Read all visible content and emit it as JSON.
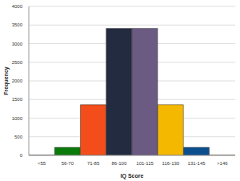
{
  "chart_data": {
    "type": "bar",
    "x_label": "IQ Score",
    "y_label": "Frequency",
    "categories": [
      "<55",
      "56-70",
      "71-85",
      "86-100",
      "101-115",
      "116-130",
      "131-145",
      ">146"
    ],
    "values": [
      10,
      215,
      1360,
      3410,
      3410,
      1360,
      215,
      10
    ],
    "colors": [
      "#7f7f7f",
      "#0a7a0a",
      "#f24d1a",
      "#232b40",
      "#6b5a82",
      "#f5b800",
      "#0b4f8f",
      "#e8a33d"
    ],
    "ylim": [
      0,
      4000
    ],
    "yticks": [
      0,
      500,
      1000,
      1500,
      2000,
      2500,
      3000,
      3500,
      4000
    ],
    "grid": true
  }
}
